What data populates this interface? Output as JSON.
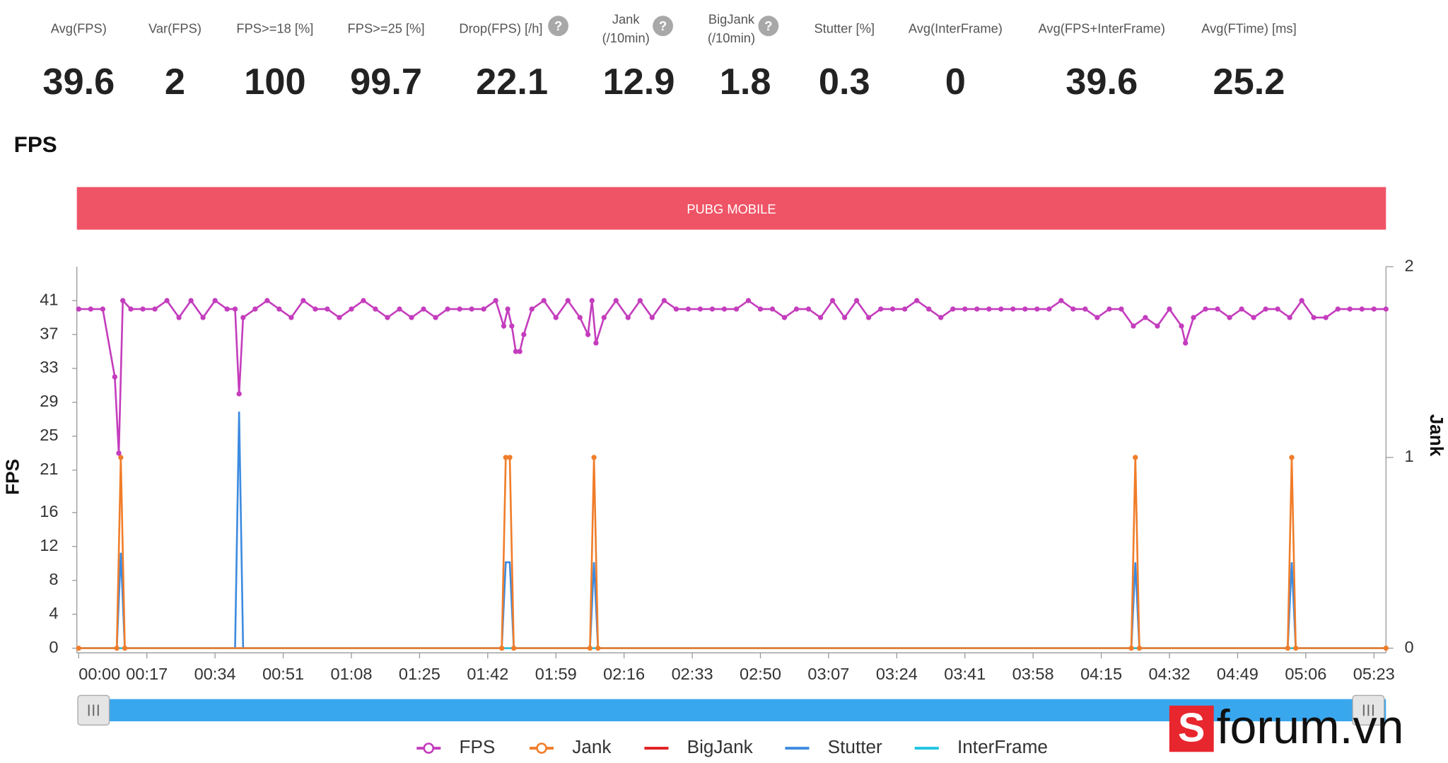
{
  "stats": [
    {
      "label_lines": [
        "Avg(FPS)"
      ],
      "value": 39.6
    },
    {
      "label_lines": [
        "Var(FPS)"
      ],
      "value": 2
    },
    {
      "label_lines": [
        "FPS>=18 [%]"
      ],
      "value": 100
    },
    {
      "label_lines": [
        "FPS>=25 [%]"
      ],
      "value": 99.7
    },
    {
      "label_lines": [
        "Drop(FPS) [/h]"
      ],
      "value": 22.1,
      "help": true
    },
    {
      "label_lines": [
        "Jank",
        "(/10min)"
      ],
      "value": 12.9,
      "help": true
    },
    {
      "label_lines": [
        "BigJank",
        "(/10min)"
      ],
      "value": 1.8,
      "help": true
    },
    {
      "label_lines": [
        "Stutter [%]"
      ],
      "value": 0.3
    },
    {
      "label_lines": [
        "Avg(InterFrame)"
      ],
      "value": 0
    },
    {
      "label_lines": [
        "Avg(FPS+InterFrame)"
      ],
      "value": 39.6
    },
    {
      "label_lines": [
        "Avg(FTime) [ms]"
      ],
      "value": 25.2
    }
  ],
  "help_icon": "?",
  "section_title": "FPS",
  "banner": "PUBG MOBILE",
  "watermark": "forum.vn",
  "watermark_logo": "S",
  "chart_data": {
    "type": "line",
    "ylabel": "FPS",
    "y2label": "Jank",
    "xlim": [
      0,
      326
    ],
    "xticks": [
      {
        "value": 0,
        "label": "00:00"
      },
      {
        "value": 17,
        "label": "00:17"
      },
      {
        "value": 34,
        "label": "00:34"
      },
      {
        "value": 51,
        "label": "00:51"
      },
      {
        "value": 68,
        "label": "01:08"
      },
      {
        "value": 85,
        "label": "01:25"
      },
      {
        "value": 102,
        "label": "01:42"
      },
      {
        "value": 119,
        "label": "01:59"
      },
      {
        "value": 136,
        "label": "02:16"
      },
      {
        "value": 153,
        "label": "02:33"
      },
      {
        "value": 170,
        "label": "02:50"
      },
      {
        "value": 187,
        "label": "03:07"
      },
      {
        "value": 204,
        "label": "03:24"
      },
      {
        "value": 221,
        "label": "03:41"
      },
      {
        "value": 238,
        "label": "03:58"
      },
      {
        "value": 255,
        "label": "04:15"
      },
      {
        "value": 272,
        "label": "04:32"
      },
      {
        "value": 289,
        "label": "04:49"
      },
      {
        "value": 306,
        "label": "05:06"
      },
      {
        "value": 323,
        "label": "05:23"
      }
    ],
    "ylim": [
      0,
      45
    ],
    "yticks": [
      0,
      4,
      8,
      12,
      16,
      21,
      25,
      29,
      33,
      37,
      41
    ],
    "y2lim": [
      0,
      2
    ],
    "y2ticks": [
      0,
      1,
      2
    ],
    "series": [
      {
        "name": "FPS",
        "color": "#c43dbd",
        "marker": true,
        "x": [
          0,
          3,
          6,
          9,
          10,
          11,
          13,
          16,
          19,
          22,
          25,
          28,
          31,
          34,
          37,
          39,
          40,
          41,
          44,
          47,
          50,
          53,
          56,
          59,
          62,
          65,
          68,
          71,
          74,
          77,
          80,
          83,
          86,
          89,
          92,
          95,
          98,
          101,
          104,
          106,
          107,
          108,
          109,
          110,
          111,
          113,
          116,
          119,
          122,
          125,
          127,
          128,
          129,
          131,
          134,
          137,
          140,
          143,
          146,
          149,
          152,
          155,
          158,
          161,
          164,
          167,
          170,
          173,
          176,
          179,
          182,
          185,
          188,
          191,
          194,
          197,
          200,
          203,
          206,
          209,
          212,
          215,
          218,
          221,
          224,
          227,
          230,
          233,
          236,
          239,
          242,
          245,
          248,
          251,
          254,
          257,
          260,
          263,
          266,
          269,
          272,
          275,
          276,
          278,
          281,
          284,
          287,
          290,
          293,
          296,
          299,
          302,
          305,
          308,
          311,
          314,
          317,
          320,
          323,
          326
        ],
        "values": [
          40,
          40,
          40,
          32,
          23,
          41,
          40,
          40,
          40,
          41,
          39,
          41,
          39,
          41,
          40,
          40,
          30,
          39,
          40,
          41,
          40,
          39,
          41,
          40,
          40,
          39,
          40,
          41,
          40,
          39,
          40,
          39,
          40,
          39,
          40,
          40,
          40,
          40,
          41,
          38,
          40,
          38,
          35,
          35,
          37,
          40,
          41,
          39,
          41,
          39,
          37,
          41,
          36,
          39,
          41,
          39,
          41,
          39,
          41,
          40,
          40,
          40,
          40,
          40,
          40,
          41,
          40,
          40,
          39,
          40,
          40,
          39,
          41,
          39,
          41,
          39,
          40,
          40,
          40,
          41,
          40,
          39,
          40,
          40,
          40,
          40,
          40,
          40,
          40,
          40,
          40,
          41,
          40,
          40,
          39,
          40,
          40,
          38,
          39,
          38,
          40,
          38,
          36,
          39,
          40,
          40,
          39,
          40,
          39,
          40,
          40,
          39,
          41,
          39,
          39,
          40,
          40,
          40,
          40,
          40
        ]
      },
      {
        "name": "Jank",
        "color": "#f07d2a",
        "marker": true,
        "axis": "y2",
        "x": [
          0,
          9.5,
          10.5,
          11.5,
          105.5,
          106.5,
          107.5,
          108.5,
          127.5,
          128.5,
          129.5,
          262.5,
          263.5,
          264.5,
          301.5,
          302.5,
          303.5,
          326
        ],
        "values": [
          0,
          0,
          1,
          0,
          0,
          1,
          1,
          0,
          0,
          1,
          0,
          0,
          1,
          0,
          0,
          1,
          0,
          0
        ]
      },
      {
        "name": "BigJank",
        "color": "#e02020",
        "marker": false,
        "axis": "y2",
        "x": [
          0,
          326
        ],
        "values": [
          0,
          0
        ]
      },
      {
        "name": "Stutter",
        "color": "#3d8be0",
        "marker": false,
        "axis": "y2",
        "x": [
          0,
          9.5,
          10.5,
          11.5,
          39,
          40,
          41,
          105.5,
          106.5,
          107.5,
          108.5,
          127.5,
          128.5,
          129.5,
          262.5,
          263.5,
          264.5,
          301.5,
          302.5,
          303.5,
          326
        ],
        "values": [
          0,
          0,
          0.5,
          0,
          0,
          1.24,
          0,
          0,
          0.45,
          0.45,
          0,
          0,
          0.45,
          0,
          0,
          0.45,
          0,
          0,
          0.45,
          0,
          0
        ]
      },
      {
        "name": "InterFrame",
        "color": "#20c5e0",
        "marker": false,
        "axis": "y2",
        "x": [
          0,
          326
        ],
        "values": [
          0,
          0
        ]
      }
    ]
  }
}
